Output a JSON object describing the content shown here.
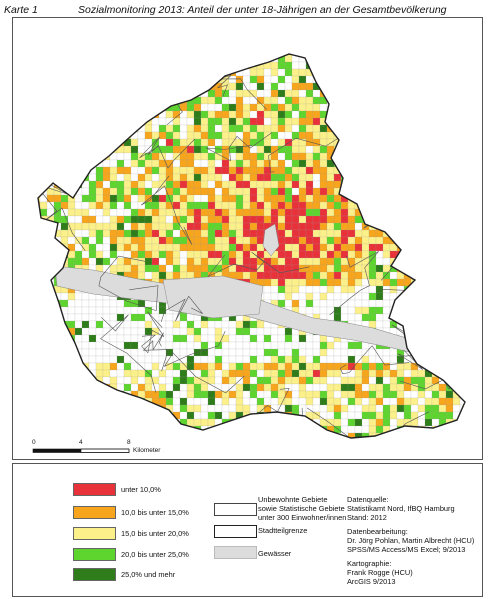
{
  "header": {
    "label": "Karte 1",
    "title": "Sozialmonitoring 2013: Anteil der unter 18-Jährigen an der Gesamtbevölkerung"
  },
  "scale_bar": {
    "start": "0",
    "mid": "4",
    "end": "8",
    "unit": "Kilometer"
  },
  "legend": {
    "classes": [
      {
        "label": "unter 10,0%",
        "color": "#e8323a"
      },
      {
        "label": "10,0 bis unter 15,0%",
        "color": "#f7a51c"
      },
      {
        "label": "15,0 bis unter 20,0%",
        "color": "#fbf08a"
      },
      {
        "label": "20,0 bis unter 25,0%",
        "color": "#5ed42e"
      },
      {
        "label": "25,0% und mehr",
        "color": "#2f7d1a"
      }
    ],
    "uninhabited": {
      "line1": "Unbewohnte Gebiete",
      "line2": "sowie Statistische Gebiete",
      "line3": "unter 300 Einwohner/innen"
    },
    "district_border": "Stadtteilgrenze",
    "water": {
      "label": "Gewässer",
      "color": "#dcdcdc"
    }
  },
  "info": {
    "source_head": "Datenquelle:",
    "source_lines": [
      "Statistikamt Nord, IfBQ Hamburg",
      "Stand: 2012"
    ],
    "processing_head": "Datenbearbeitung:",
    "processing_lines": [
      "Dr. Jörg Pohlan, Martin Albrecht (HCU)",
      "SPSS/MS Access/MS Excel; 9/2013"
    ],
    "carto_head": "Kartographie:",
    "carto_lines": [
      "Frank Rogge (HCU)",
      "ArcGIS 9/2013"
    ]
  }
}
